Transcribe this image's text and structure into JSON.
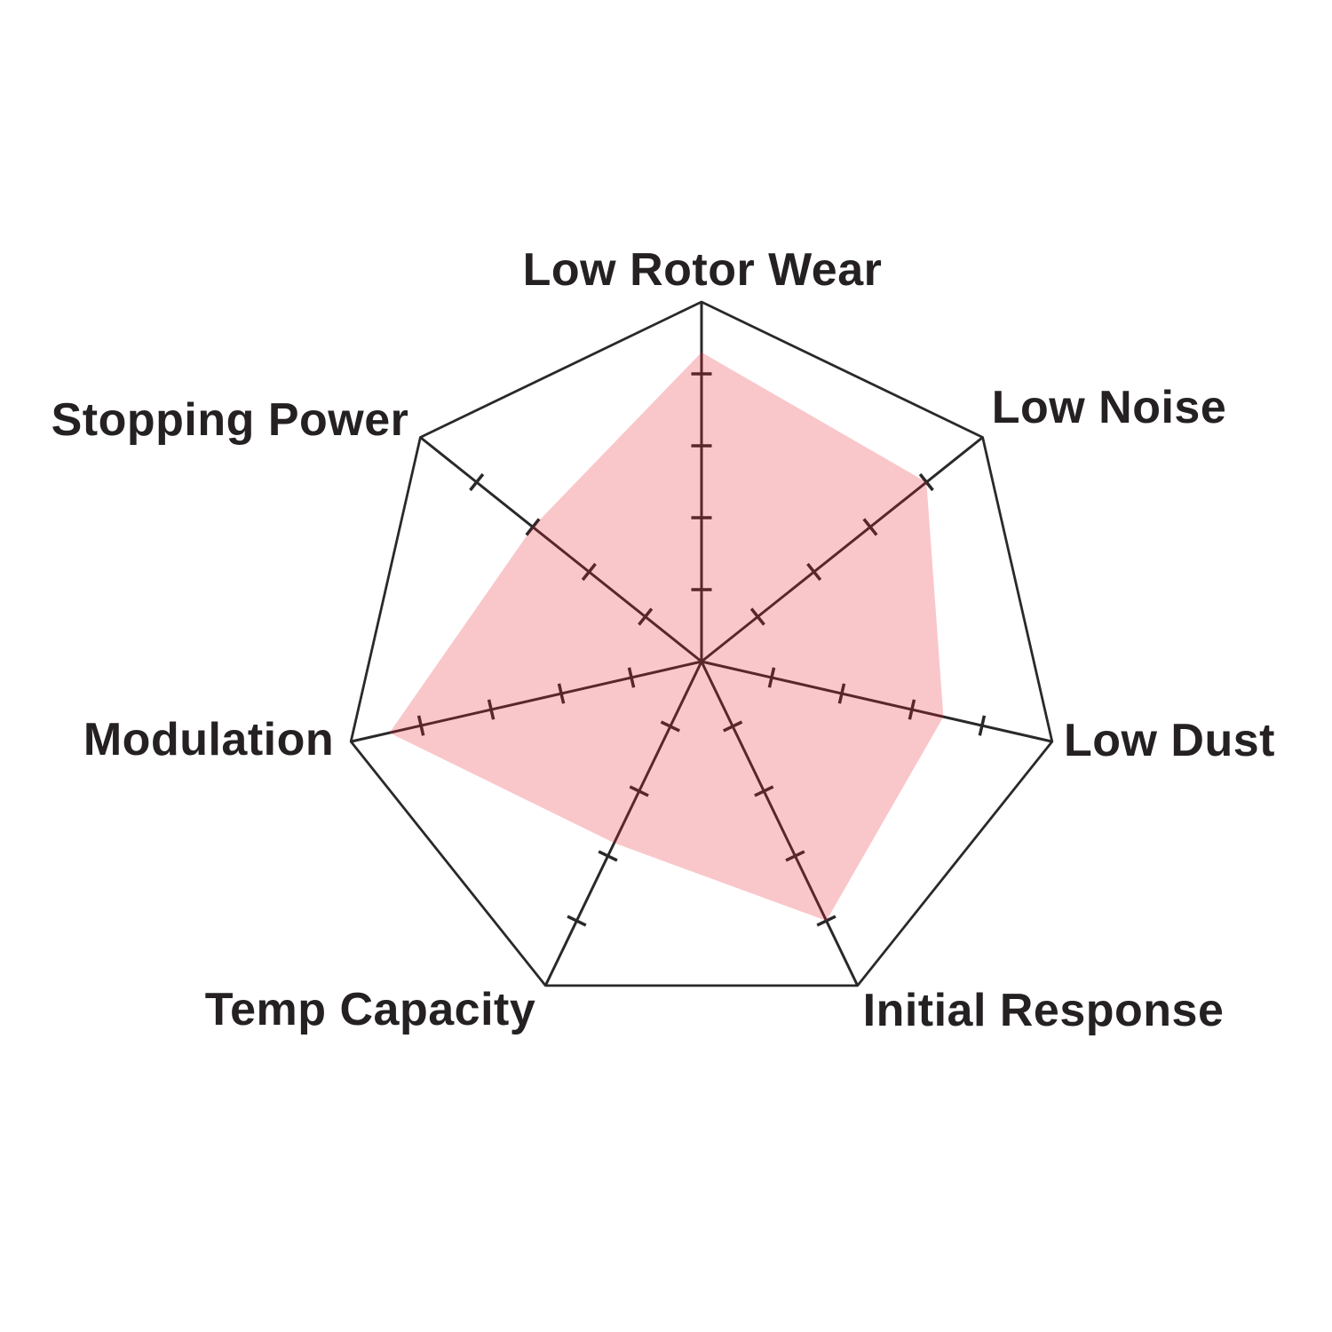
{
  "chart_data": {
    "type": "radar",
    "categories": [
      "Low Rotor Wear",
      "Low Noise",
      "Low Dust",
      "Initial Response",
      "Temp Capacity",
      "Modulation",
      "Stopping Power"
    ],
    "series": [
      {
        "values": [
          4.3,
          4.0,
          3.45,
          4.0,
          2.8,
          4.45,
          3.0
        ]
      }
    ],
    "scale": {
      "min": 0,
      "max": 5,
      "ticks": [
        1,
        2,
        3,
        4
      ]
    },
    "grid": "single outer heptagon ring, radial axes with perpendicular tick marks, no inner rings",
    "legend_position": "none",
    "layout": {
      "center": [
        790,
        745
      ],
      "radius": 405
    },
    "colors": {
      "fill": "#E91E2D",
      "fill_opacity": 0.25,
      "fill_over_white": "#F9C7CA",
      "line": "#2B2829",
      "label": "#252122",
      "background": "#FFFFFF"
    }
  }
}
